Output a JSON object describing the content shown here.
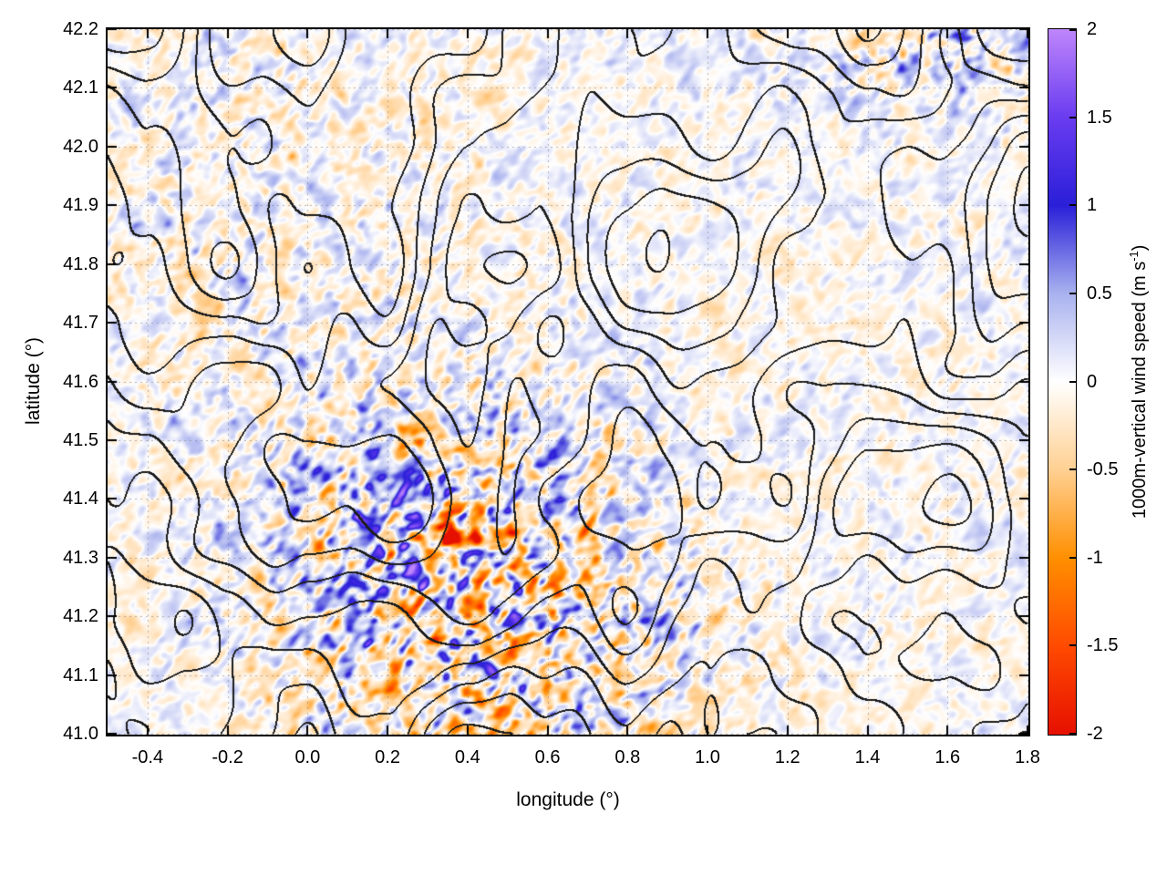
{
  "chart_data": {
    "type": "heatmap",
    "xlabel": "longitude (°)",
    "ylabel": "latitude (°)",
    "xlim": [
      -0.5,
      1.8
    ],
    "ylim": [
      41.0,
      42.2
    ],
    "x_ticks": [
      -0.4,
      -0.2,
      0.0,
      0.2,
      0.4,
      0.6,
      0.8,
      1.0,
      1.2,
      1.4,
      1.6,
      1.8
    ],
    "x_tick_labels": [
      "-0.4",
      "-0.2",
      "0.0",
      "0.2",
      "0.4",
      "0.6",
      "0.8",
      "1.0",
      "1.2",
      "1.4",
      "1.6",
      "1.8"
    ],
    "y_ticks": [
      41.0,
      41.1,
      41.2,
      41.3,
      41.4,
      41.5,
      41.6,
      41.7,
      41.8,
      41.9,
      42.0,
      42.1,
      42.2
    ],
    "y_tick_labels": [
      "41.0",
      "41.1",
      "41.2",
      "41.3",
      "41.4",
      "41.5",
      "41.6",
      "41.7",
      "41.8",
      "41.9",
      "42.0",
      "42.1",
      "42.2"
    ],
    "grid": true,
    "grid_color": "rgba(120,120,120,0.55)",
    "field": {
      "quantity": "1000 m vertical wind speed",
      "units": "m s-1",
      "value_range": [
        -2,
        2
      ],
      "description": "Small-scale wave-like speckle field, mostly faint (|w| < 0.5 m/s, pale blue and pale orange). Strong mountain-wave activity (alternating deep blue and orange streaks reaching +/-2 m/s, small red spot near lon 0.35 lat 41.33) concentrated over lon 0.0-0.9, lat 41.0-41.5; secondary blue streak near lon 1.55 lat 42.15."
    },
    "overlay": {
      "description": "black topographic elevation contour lines",
      "color": "#1c1c1c"
    },
    "colorbar": {
      "label_pre": "1000m-vertical wind speed (m s",
      "label_sup": "-1",
      "label_post": ")",
      "range": [
        -2,
        2
      ],
      "ticks": [
        -2,
        -1.5,
        -1,
        -0.5,
        0,
        0.5,
        1,
        1.5,
        2
      ],
      "tick_labels": [
        "-2",
        "-1.5",
        "-1",
        "-0.5",
        "0",
        "0.5",
        "1",
        "1.5",
        "2"
      ],
      "stops": [
        {
          "v": -2.0,
          "color": "#e61000"
        },
        {
          "v": -1.5,
          "color": "#ff4a00"
        },
        {
          "v": -1.0,
          "color": "#ff8f00"
        },
        {
          "v": -0.5,
          "color": "#ffd092"
        },
        {
          "v": 0.0,
          "color": "#ffffff"
        },
        {
          "v": 0.5,
          "color": "#a9b2ef"
        },
        {
          "v": 1.0,
          "color": "#2a1fd8"
        },
        {
          "v": 1.5,
          "color": "#6a3cf0"
        },
        {
          "v": 2.0,
          "color": "#bf86fb"
        }
      ]
    }
  }
}
